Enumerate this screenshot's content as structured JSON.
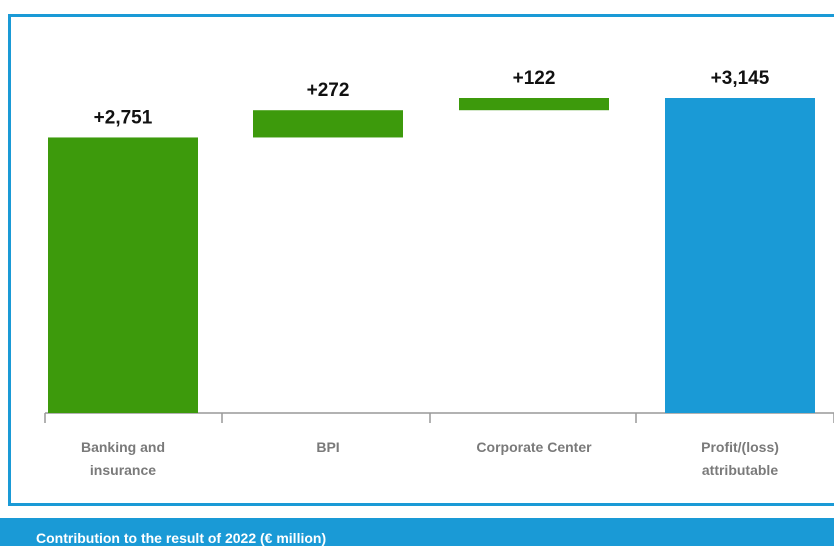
{
  "chart_data": {
    "type": "waterfall",
    "categories": [
      "Banking and insurance",
      "BPI",
      "Corporate Center",
      "Profit/(loss) attributable"
    ],
    "values": [
      2751,
      272,
      122,
      3145
    ],
    "value_labels": [
      "+2,751",
      "+272",
      "+122",
      "+3,145"
    ],
    "colors": [
      "#3d9a0c",
      "#3d9a0c",
      "#3d9a0c",
      "#1a9ad6"
    ],
    "total": true,
    "caption": "Contribution to the result of 2022 (€ million)"
  }
}
